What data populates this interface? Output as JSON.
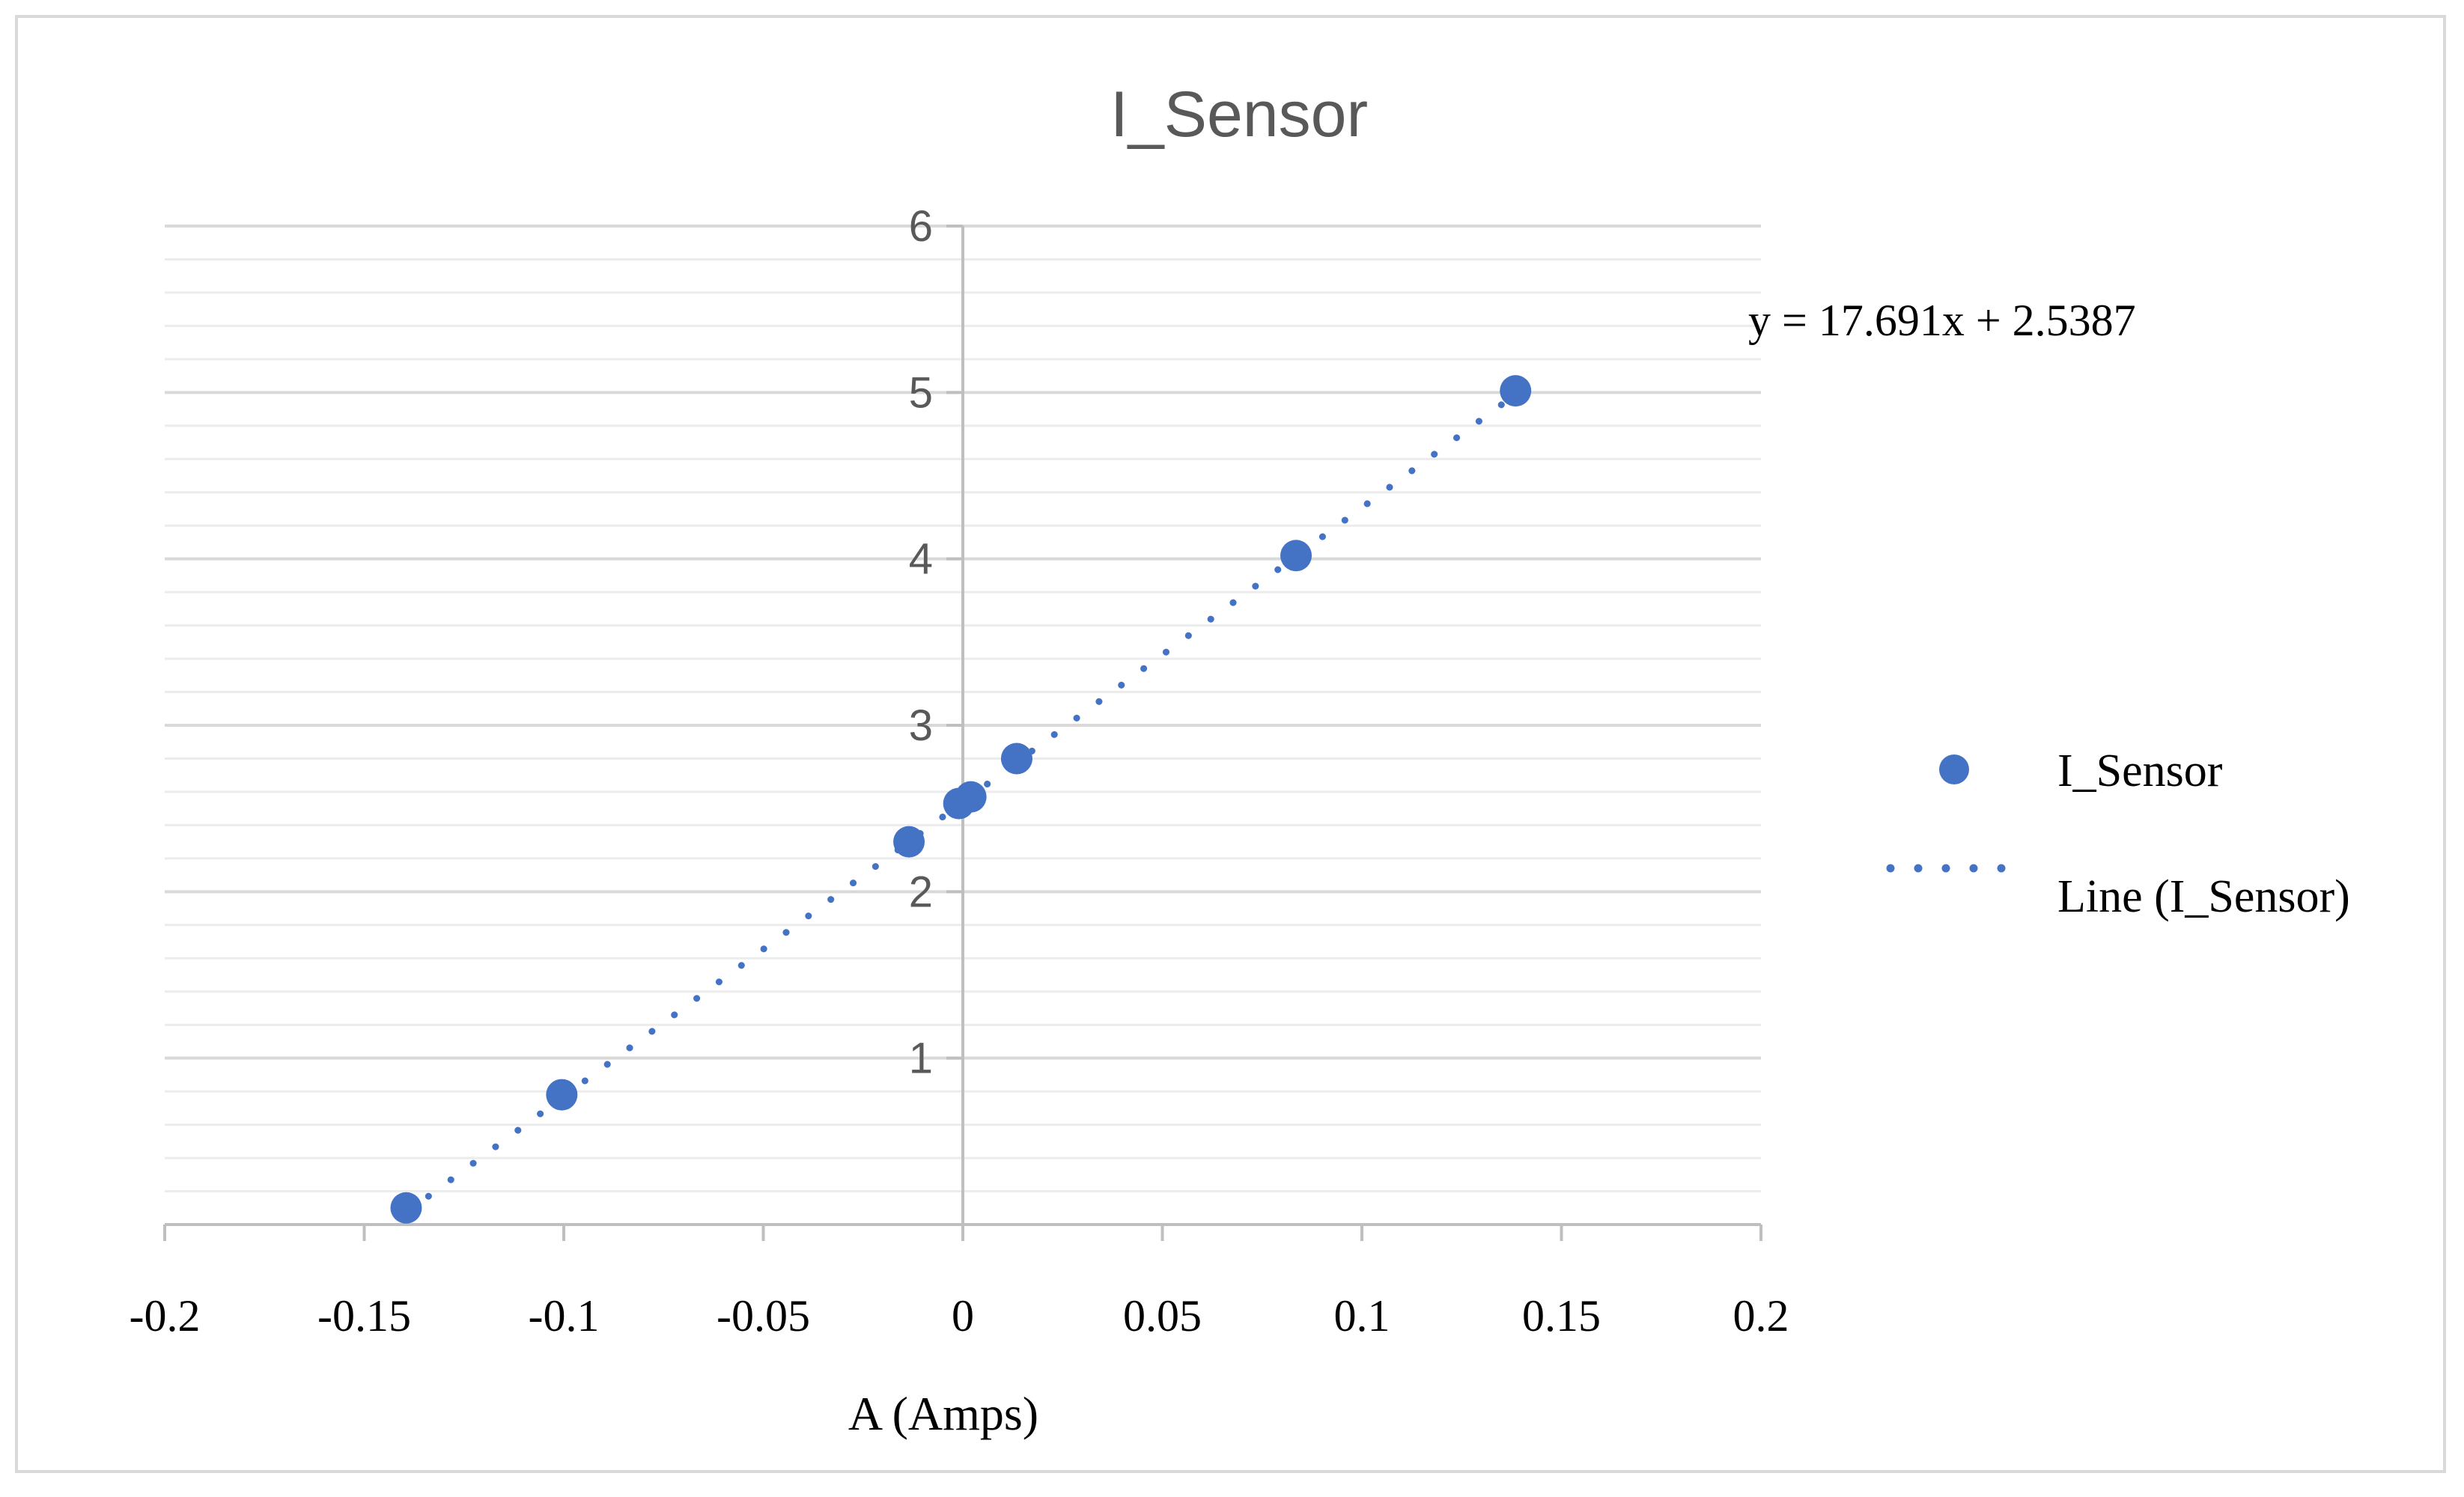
{
  "chart_data": {
    "type": "scatter",
    "title": "I_Sensor",
    "xlabel": "A (Amps)",
    "ylabel": "",
    "xlim": [
      -0.2,
      0.2
    ],
    "ylim": [
      0,
      6
    ],
    "x_ticks": [
      -0.2,
      -0.15,
      -0.1,
      -0.05,
      0,
      0.05,
      0.1,
      0.15,
      0.2
    ],
    "x_tick_labels": [
      "-0.2",
      "-0.15",
      "-0.1",
      "-0.05",
      "0",
      "0.05",
      "0.1",
      "0.15",
      "0.2"
    ],
    "y_ticks": [
      1,
      2,
      3,
      4,
      5,
      6
    ],
    "y_tick_labels": [
      "1",
      "2",
      "3",
      "4",
      "5",
      "6"
    ],
    "y_minor_step": 0.2,
    "grid": true,
    "series": [
      {
        "name": "I_Sensor",
        "kind": "markers",
        "color": "#4472c4",
        "x": [
          -0.1395,
          -0.1005,
          -0.0135,
          -0.001,
          0.002,
          0.0135,
          0.0835,
          0.1385
        ],
        "y": [
          0.1,
          0.78,
          2.3,
          2.53,
          2.57,
          2.8,
          4.02,
          5.01
        ]
      },
      {
        "name": "Line (I_Sensor)",
        "kind": "trendline",
        "color": "#4472c4",
        "slope": 17.691,
        "intercept": 2.5387,
        "x_range": [
          -0.1395,
          0.1385
        ]
      }
    ],
    "trendline_equation": "y = 17.691x + 2.5387",
    "legend_position": "right"
  }
}
